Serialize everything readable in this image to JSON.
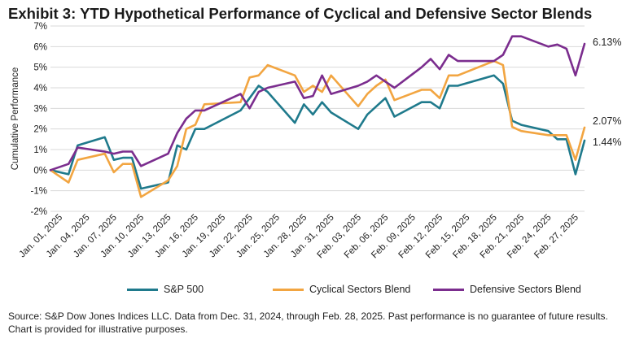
{
  "title": "Exhibit 3: YTD Hypothetical Performance of Cyclical and Defensive Sector Blends",
  "source": "Source: S&P Dow Jones Indices LLC. Data from Dec. 31, 2024, through Feb. 28, 2025. Past performance is no guarantee of future results. Chart is provided for illustrative purposes.",
  "colors": {
    "sp500": "#1f7a8c",
    "cyclical": "#f2a541",
    "defensive": "#7b2d8e",
    "grid": "#d9d9d9"
  },
  "chart_data": {
    "type": "line",
    "title": "Exhibit 3: YTD Hypothetical Performance of Cyclical and Defensive Sector Blends",
    "xlabel": "",
    "ylabel": "Cumulative Performance",
    "ylim": [
      -2,
      7
    ],
    "yticks": [
      "-2%",
      "-1%",
      "0%",
      "1%",
      "2%",
      "3%",
      "4%",
      "5%",
      "6%",
      "7%"
    ],
    "grid": true,
    "legend": "bottom",
    "x": [
      "Dec. 31, 2024",
      "Jan. 02, 2025",
      "Jan. 03, 2025",
      "Jan. 06, 2025",
      "Jan. 07, 2025",
      "Jan. 08, 2025",
      "Jan. 09, 2025",
      "Jan. 10, 2025",
      "Jan. 13, 2025",
      "Jan. 14, 2025",
      "Jan. 15, 2025",
      "Jan. 16, 2025",
      "Jan. 17, 2025",
      "Jan. 21, 2025",
      "Jan. 22, 2025",
      "Jan. 23, 2025",
      "Jan. 24, 2025",
      "Jan. 27, 2025",
      "Jan. 28, 2025",
      "Jan. 29, 2025",
      "Jan. 30, 2025",
      "Jan. 31, 2025",
      "Feb. 03, 2025",
      "Feb. 04, 2025",
      "Feb. 05, 2025",
      "Feb. 06, 2025",
      "Feb. 07, 2025",
      "Feb. 10, 2025",
      "Feb. 11, 2025",
      "Feb. 12, 2025",
      "Feb. 13, 2025",
      "Feb. 14, 2025",
      "Feb. 18, 2025",
      "Feb. 19, 2025",
      "Feb. 20, 2025",
      "Feb. 21, 2025",
      "Feb. 24, 2025",
      "Feb. 25, 2025",
      "Feb. 26, 2025",
      "Feb. 27, 2025",
      "Feb. 28, 2025"
    ],
    "xticks": [
      "Jan. 01, 2025",
      "Jan. 04, 2025",
      "Jan. 07, 2025",
      "Jan. 10, 2025",
      "Jan. 13, 2025",
      "Jan. 16, 2025",
      "Jan. 19, 2025",
      "Jan. 22, 2025",
      "Jan. 25, 2025",
      "Jan. 28, 2025",
      "Jan. 31, 2025",
      "Feb. 03, 2025",
      "Feb. 06, 2025",
      "Feb. 09, 2025",
      "Feb. 12, 2025",
      "Feb. 15, 2025",
      "Feb. 18, 2025",
      "Feb. 21, 2025",
      "Feb. 24, 2025",
      "Feb. 27, 2025"
    ],
    "series": [
      {
        "name": "S&P 500",
        "color": "#1f7a8c",
        "values": [
          0,
          -0.2,
          1.2,
          1.6,
          0.5,
          0.6,
          0.6,
          -0.9,
          -0.6,
          1.2,
          1.0,
          2.0,
          2.0,
          2.9,
          3.5,
          4.1,
          3.8,
          2.3,
          3.2,
          2.7,
          3.3,
          2.8,
          2.0,
          2.7,
          3.1,
          3.5,
          2.6,
          3.3,
          3.3,
          3.0,
          4.1,
          4.1,
          4.6,
          4.2,
          2.4,
          2.2,
          1.9,
          1.5,
          1.5,
          -0.2,
          1.44
        ]
      },
      {
        "name": "Cyclical Sectors Blend",
        "color": "#f2a541",
        "values": [
          0,
          -0.6,
          0.5,
          0.8,
          -0.1,
          0.3,
          0.3,
          -1.3,
          -0.5,
          0.2,
          2.0,
          2.2,
          3.2,
          3.3,
          4.5,
          4.6,
          5.1,
          4.6,
          3.8,
          4.1,
          3.8,
          4.6,
          3.1,
          3.7,
          4.1,
          4.4,
          3.4,
          3.9,
          3.9,
          3.5,
          4.6,
          4.6,
          5.3,
          5.1,
          2.1,
          1.9,
          1.7,
          1.7,
          1.7,
          0.5,
          2.07
        ]
      },
      {
        "name": "Defensive Sectors Blend",
        "color": "#7b2d8e",
        "values": [
          0,
          0.3,
          1.1,
          0.9,
          0.8,
          0.9,
          0.9,
          0.2,
          0.8,
          1.8,
          2.5,
          2.9,
          2.9,
          3.7,
          3.0,
          3.8,
          4.0,
          4.3,
          3.5,
          3.6,
          4.6,
          3.7,
          4.1,
          4.3,
          4.6,
          4.3,
          4.0,
          5.0,
          5.4,
          4.9,
          5.6,
          5.3,
          5.3,
          5.6,
          6.5,
          6.5,
          6.0,
          6.1,
          5.9,
          4.6,
          6.13
        ]
      }
    ],
    "end_labels": [
      "6.13%",
      "2.07%",
      "1.44%"
    ]
  }
}
